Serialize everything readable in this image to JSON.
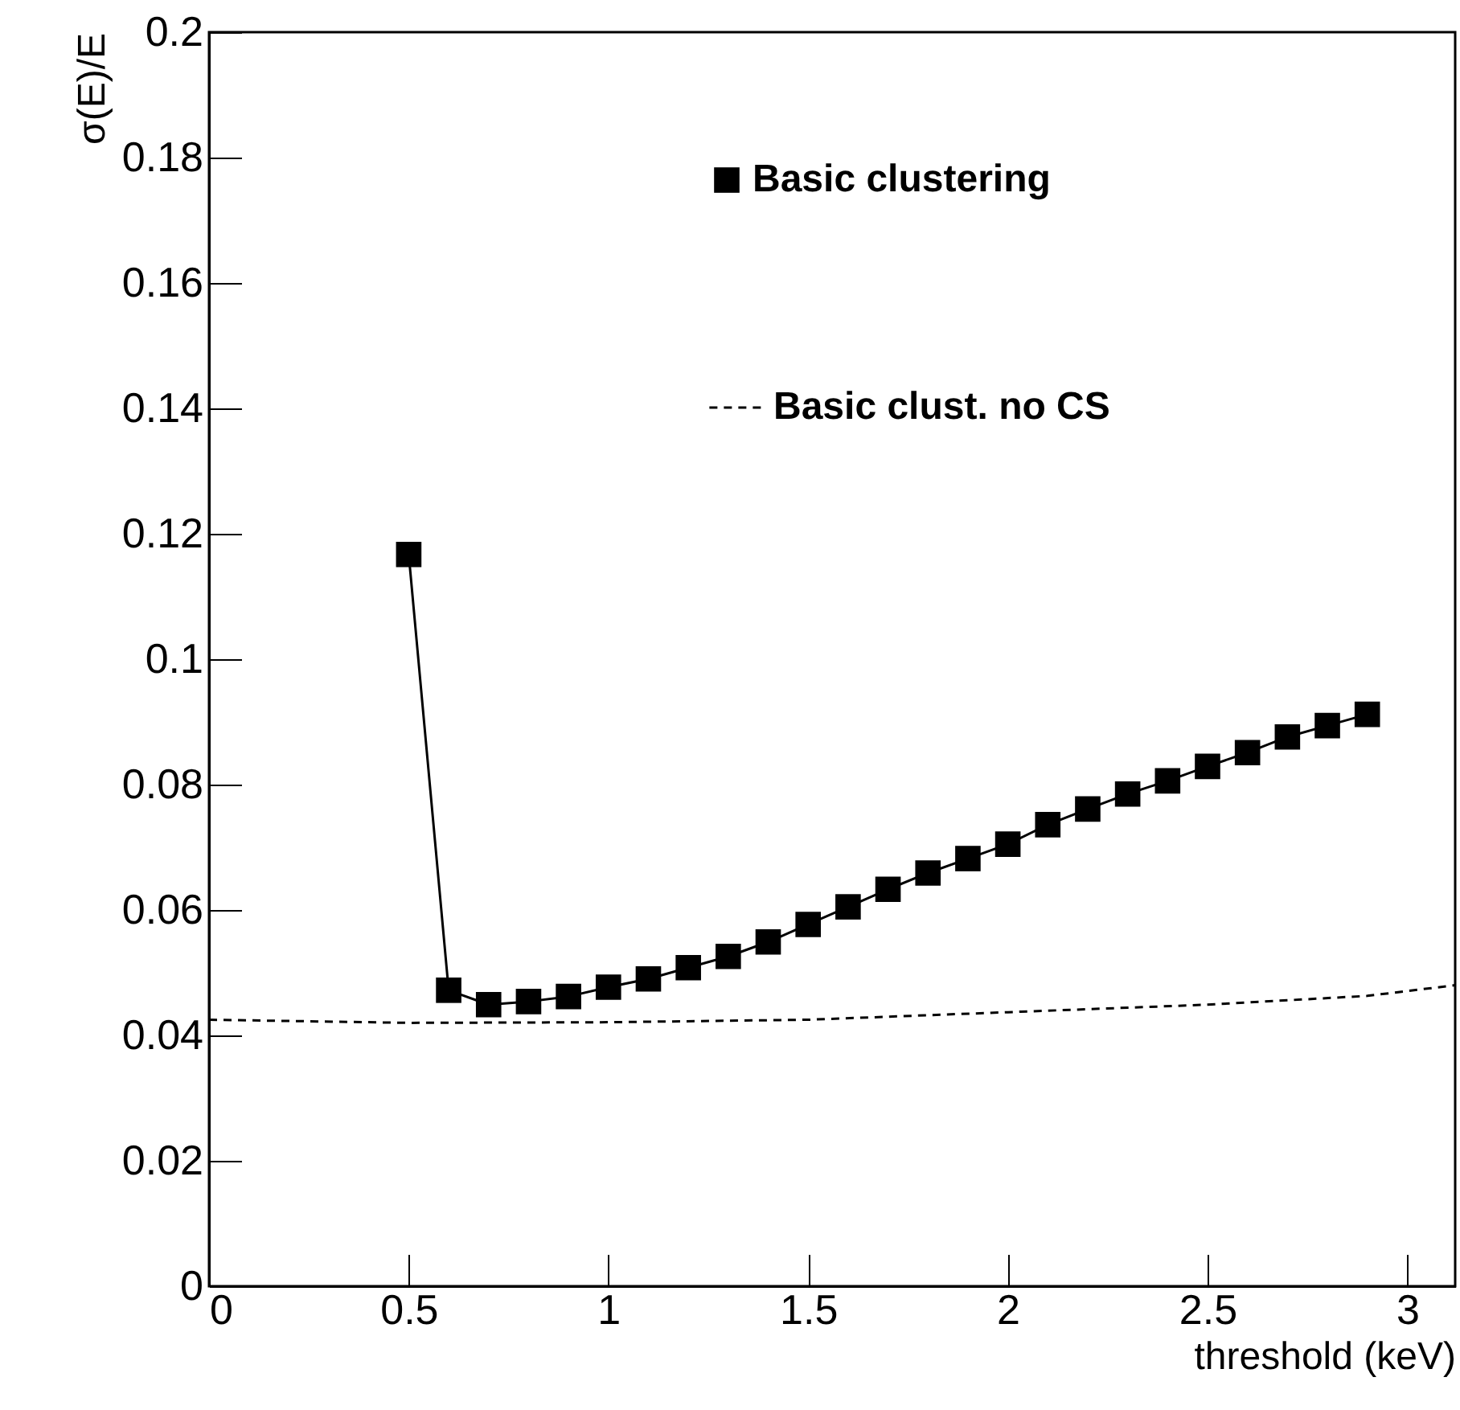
{
  "chart_data": {
    "type": "line",
    "xlabel": "threshold (keV)",
    "ylabel": "σ(E)/E",
    "xlim": [
      0,
      3.12
    ],
    "ylim": [
      0,
      0.2
    ],
    "xticks": [
      0,
      0.5,
      1,
      1.5,
      2,
      2.5,
      3
    ],
    "yticks": [
      0,
      0.02,
      0.04,
      0.06,
      0.08,
      0.1,
      0.12,
      0.14,
      0.16,
      0.18,
      0.2
    ],
    "legend": "top right",
    "grid": false,
    "series": [
      {
        "name": "Basic clustering",
        "color": "#000000",
        "marker": "square",
        "line_style": "solid",
        "x": [
          0.5,
          0.6,
          0.7,
          0.8,
          0.9,
          1.0,
          1.1,
          1.2,
          1.3,
          1.4,
          1.5,
          1.6,
          1.7,
          1.8,
          1.9,
          2.0,
          2.1,
          2.2,
          2.3,
          2.4,
          2.5,
          2.6,
          2.7,
          2.8,
          2.9
        ],
        "values": [
          0.1167,
          0.0472,
          0.0449,
          0.0454,
          0.0462,
          0.0477,
          0.049,
          0.0508,
          0.0526,
          0.0549,
          0.0577,
          0.0605,
          0.0633,
          0.0659,
          0.0682,
          0.0705,
          0.0736,
          0.0761,
          0.0785,
          0.0806,
          0.0829,
          0.0851,
          0.0876,
          0.0894,
          0.0912
        ]
      },
      {
        "name": "Basic clust. no CS",
        "color": "#000000",
        "marker": "none",
        "line_style": "dashed",
        "x": [
          0,
          0.5,
          1.0,
          1.5,
          2.0,
          2.5,
          2.9,
          3.12
        ],
        "values": [
          0.0425,
          0.042,
          0.0421,
          0.0425,
          0.0437,
          0.0449,
          0.0463,
          0.048
        ]
      }
    ]
  }
}
